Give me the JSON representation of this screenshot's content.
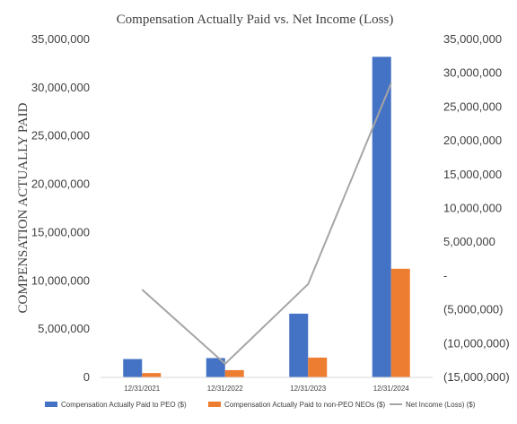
{
  "chart_data": {
    "type": "bar",
    "title": "Compensation Actually  Paid vs. Net Income (Loss)",
    "ylabel": "COMPENSATION ACTUALLY PAID",
    "xlabel": "",
    "categories": [
      "12/31/2021",
      "12/31/2022",
      "12/31/2023",
      "12/31/2024"
    ],
    "series": [
      {
        "name": "Compensation Actually Paid to PEO ($)",
        "type": "bar",
        "axis": "left",
        "color": "#4472C4",
        "values": [
          1900000,
          2000000,
          6600000,
          33200000
        ]
      },
      {
        "name": "Compensation Actually Paid to non-PEO NEOs ($)",
        "type": "bar",
        "axis": "left",
        "color": "#ED7D31",
        "values": [
          450000,
          750000,
          2050000,
          11250000
        ]
      },
      {
        "name": "Net Income (Loss) ($)",
        "type": "line",
        "axis": "right",
        "color": "#A5A5A5",
        "values": [
          -2000000,
          -13000000,
          -1200000,
          28500000
        ]
      }
    ],
    "ylim": [
      0,
      35000000
    ],
    "y2lim": [
      -15000000,
      35000000
    ],
    "y_ticks": [
      "0",
      "5,000,000",
      "10,000,000",
      "15,000,000",
      "20,000,000",
      "25,000,000",
      "30,000,000",
      "35,000,000"
    ],
    "y2_ticks": [
      "(15,000,000)",
      "(10,000,000)",
      "(5,000,000)",
      "-",
      "5,000,000",
      "10,000,000",
      "15,000,000",
      "20,000,000",
      "25,000,000",
      "30,000,000",
      "35,000,000"
    ],
    "grid": false,
    "legend": "bottom"
  }
}
